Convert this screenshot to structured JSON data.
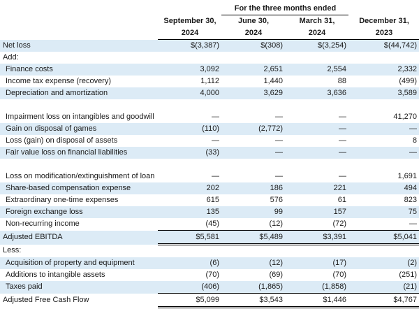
{
  "header": {
    "span_label": "For the three months ended",
    "columns": [
      {
        "line1": "September 30,",
        "line2": "2024"
      },
      {
        "line1": "June 30,",
        "line2": "2024"
      },
      {
        "line1": "March 31,",
        "line2": "2024"
      },
      {
        "line1": "December 31,",
        "line2": "2023"
      }
    ]
  },
  "rows": [
    {
      "label": "Net loss",
      "values": [
        "$(3,387)",
        "$(308)",
        "$(3,254)",
        "$(44,742)"
      ]
    },
    {
      "label": "Add:",
      "values": [
        "",
        "",
        "",
        ""
      ]
    },
    {
      "label": "Finance costs",
      "values": [
        "3,092",
        "2,651",
        "2,554",
        "2,332"
      ]
    },
    {
      "label": "Income tax expense (recovery)",
      "values": [
        "1,112",
        "1,440",
        "88",
        "(499)"
      ]
    },
    {
      "label": "Depreciation and amortization",
      "values": [
        "4,000",
        "3,629",
        "3,636",
        "3,589"
      ]
    },
    {
      "label": "Impairment loss on intangibles and goodwill",
      "values": [
        "—",
        "—",
        "—",
        "41,270"
      ]
    },
    {
      "label": "Gain on disposal of games",
      "values": [
        "(110)",
        "(2,772)",
        "—",
        "—"
      ]
    },
    {
      "label": "Loss (gain) on disposal of assets",
      "values": [
        "—",
        "—",
        "—",
        "8"
      ]
    },
    {
      "label": "Fair value loss on financial liabilities",
      "values": [
        "(33)",
        "—",
        "—",
        "—"
      ]
    },
    {
      "label": "Loss on modification/extinguishment of loan",
      "values": [
        "—",
        "—",
        "—",
        "1,691"
      ]
    },
    {
      "label": "Share-based compensation expense",
      "values": [
        "202",
        "186",
        "221",
        "494"
      ]
    },
    {
      "label": "Extraordinary one-time expenses",
      "values": [
        "615",
        "576",
        "61",
        "823"
      ]
    },
    {
      "label": "Foreign exchange loss",
      "values": [
        "135",
        "99",
        "157",
        "75"
      ]
    },
    {
      "label": "Non-recurring income",
      "values": [
        "(45)",
        "(12)",
        "(72)",
        "—"
      ]
    },
    {
      "label": "Adjusted EBITDA",
      "values": [
        "$5,581",
        "$5,489",
        "$3,391",
        "$5,041"
      ]
    },
    {
      "label": "Less:",
      "values": [
        "",
        "",
        "",
        ""
      ]
    },
    {
      "label": "Acquisition of property and equipment",
      "values": [
        "(6)",
        "(12)",
        "(17)",
        "(2)"
      ]
    },
    {
      "label": "Additions to intangible assets",
      "values": [
        "(70)",
        "(69)",
        "(70)",
        "(251)"
      ]
    },
    {
      "label": "Taxes paid",
      "values": [
        "(406)",
        "(1,865)",
        "(1,858)",
        "(21)"
      ]
    },
    {
      "label": "Adjusted Free Cash Flow",
      "values": [
        "$5,099",
        "$3,543",
        "$1,446",
        "$4,767"
      ]
    }
  ],
  "colors": {
    "row_shade": "#dcebf6"
  }
}
